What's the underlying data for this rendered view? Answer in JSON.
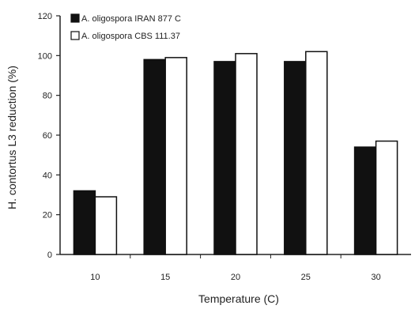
{
  "chart_data": {
    "type": "bar",
    "categories": [
      "10",
      "15",
      "20",
      "25",
      "30"
    ],
    "series": [
      {
        "name": "A. oligospora IRAN 877 C",
        "color": "#111111",
        "values": [
          32,
          98,
          97,
          97,
          54
        ]
      },
      {
        "name": "A. oligospora CBS 111.37",
        "color": "#ffffff",
        "values": [
          29,
          99,
          101,
          102,
          57
        ]
      }
    ],
    "xlabel": "Temperature (C)",
    "ylabel": "H. contortus L3 reduction (%)",
    "ylim": [
      0,
      120
    ],
    "yticks": [
      0,
      20,
      40,
      60,
      80,
      100,
      120
    ],
    "grid": false,
    "legend_position": "top-left"
  }
}
